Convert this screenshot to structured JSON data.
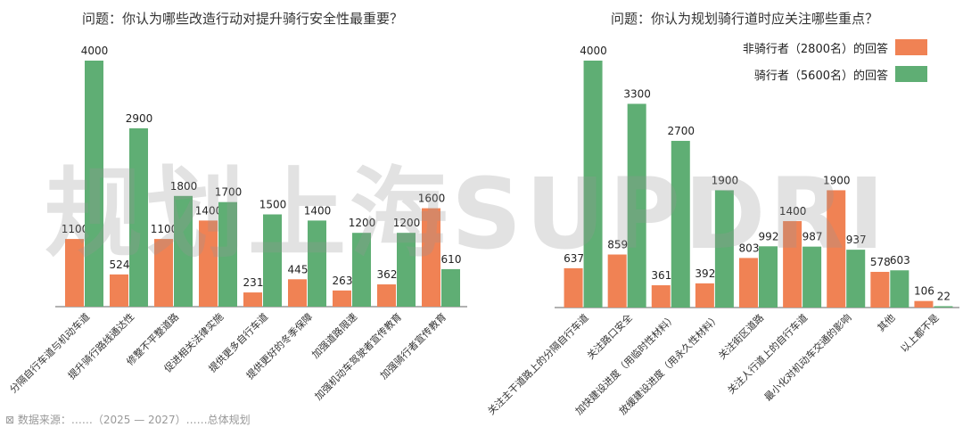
{
  "colors": {
    "non_rider": "#F08254",
    "rider": "#5FAE74",
    "axis": "#666666"
  },
  "chart_data": [
    {
      "type": "bar",
      "title": "问题：你认为哪些改造行动对提升骑行安全性最重要？",
      "categories": [
        "分隔自行车道与机动车道",
        "提升骑行路线通达性",
        "修整不平整道路",
        "促进相关法律实施",
        "提供更多自行车道",
        "提供更好的冬季保障",
        "加强道路限速",
        "加强机动车驾驶者宣传教育",
        "加强骑行者宣传教育"
      ],
      "series": [
        {
          "key": "non_rider",
          "values": [
            1100,
            524,
            1100,
            1400,
            231,
            445,
            263,
            362,
            1600
          ],
          "labels": [
            "1100",
            "524",
            "1100",
            "1400",
            "231",
            "445",
            "263",
            "362",
            "1600"
          ]
        },
        {
          "key": "rider",
          "values": [
            4000,
            2900,
            1800,
            1700,
            1500,
            1400,
            1200,
            1200,
            610
          ],
          "labels": [
            "4000",
            "2900",
            "1800",
            "1700",
            "1500",
            "1400",
            "1200",
            "1200",
            "610"
          ]
        }
      ],
      "ylim": [
        0,
        4000
      ]
    },
    {
      "type": "bar",
      "title": "问题：你认为规划骑行道时应关注哪些重点？",
      "categories": [
        "关注主干道路上的分隔自行车道",
        "关注路口安全",
        "加快建设进度（用临时性材料）",
        "放缓建设进度（用永久性材料）",
        "关注街区道路",
        "关注人行道上的自行车道",
        "最小化对机动车交通的影响",
        "其他",
        "以上都不是"
      ],
      "series": [
        {
          "key": "non_rider",
          "name": "非骑行者（2800名）的回答",
          "values": [
            637,
            859,
            361,
            392,
            803,
            1400,
            1900,
            578,
            106
          ],
          "labels": [
            "637",
            "859",
            "361",
            "392",
            "803",
            "1400",
            "1900",
            "578",
            "106"
          ]
        },
        {
          "key": "rider",
          "name": "骑行者（5600名）的回答",
          "values": [
            4000,
            3300,
            2700,
            1900,
            992,
            987,
            937,
            603,
            22
          ],
          "labels": [
            "4000",
            "3300",
            "2700",
            "1900",
            "992",
            "987",
            "937",
            "603",
            "22"
          ]
        }
      ],
      "ylim": [
        0,
        4000
      ],
      "legend": "top-right"
    }
  ],
  "watermark": "规划上海SUPDRI",
  "footer": "⊠ 数据来源：……（2025 — 2027）……总体规划"
}
